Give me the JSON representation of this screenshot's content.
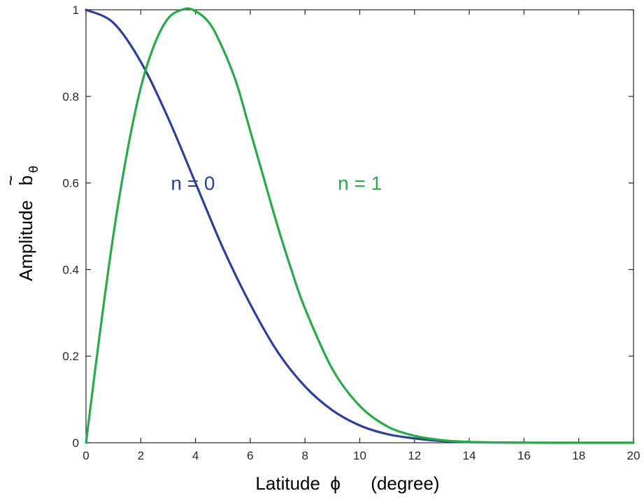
{
  "chart_data": {
    "type": "line",
    "xlabel": "Latitude  ϕ      (degree)",
    "ylabel": "Amplitude",
    "ylabel_symbol": "b",
    "ylabel_tilde": "~",
    "ylabel_subscript": "θ",
    "xlim": [
      0,
      20
    ],
    "ylim": [
      0,
      1
    ],
    "xticks": [
      "0",
      "2",
      "4",
      "6",
      "8",
      "10",
      "12",
      "14",
      "16",
      "18",
      "20"
    ],
    "yticks": [
      "0",
      "0.2",
      "0.4",
      "0.6",
      "0.8",
      "1"
    ],
    "grid": false,
    "series": [
      {
        "name": "n = 0",
        "color": "#2e3f9a",
        "x": [
          0,
          1,
          2,
          3,
          4,
          5,
          6,
          7,
          8,
          9,
          10,
          11,
          12,
          13,
          14,
          15,
          16,
          17,
          18,
          19,
          20
        ],
        "values": [
          1.0,
          0.97,
          0.88,
          0.75,
          0.6,
          0.45,
          0.32,
          0.21,
          0.13,
          0.075,
          0.04,
          0.02,
          0.01,
          0.004,
          0.0015,
          0.0005,
          0.0002,
          0.0,
          0.0,
          0.0,
          0.0
        ]
      },
      {
        "name": "n = 1",
        "color": "#27aa48",
        "x": [
          0,
          0.5,
          1,
          1.5,
          2,
          2.5,
          3,
          3.5,
          3.9,
          4.5,
          5,
          5.5,
          6,
          6.5,
          7,
          7.5,
          8,
          9,
          10,
          11,
          12,
          13,
          14,
          15,
          16,
          17,
          18,
          19,
          20
        ],
        "values": [
          0.0,
          0.25,
          0.48,
          0.67,
          0.82,
          0.92,
          0.98,
          1.0,
          1.0,
          0.97,
          0.91,
          0.83,
          0.72,
          0.61,
          0.5,
          0.4,
          0.31,
          0.17,
          0.085,
          0.038,
          0.016,
          0.006,
          0.002,
          0.0007,
          0.0002,
          0.0,
          0.0,
          0.0,
          0.0
        ]
      }
    ],
    "annotations": [
      {
        "text": "n = 0",
        "series": 0,
        "x": 3.1,
        "y": 0.3
      },
      {
        "text": "n = 1",
        "series": 1,
        "x": 9.2,
        "y": 0.3
      }
    ]
  }
}
